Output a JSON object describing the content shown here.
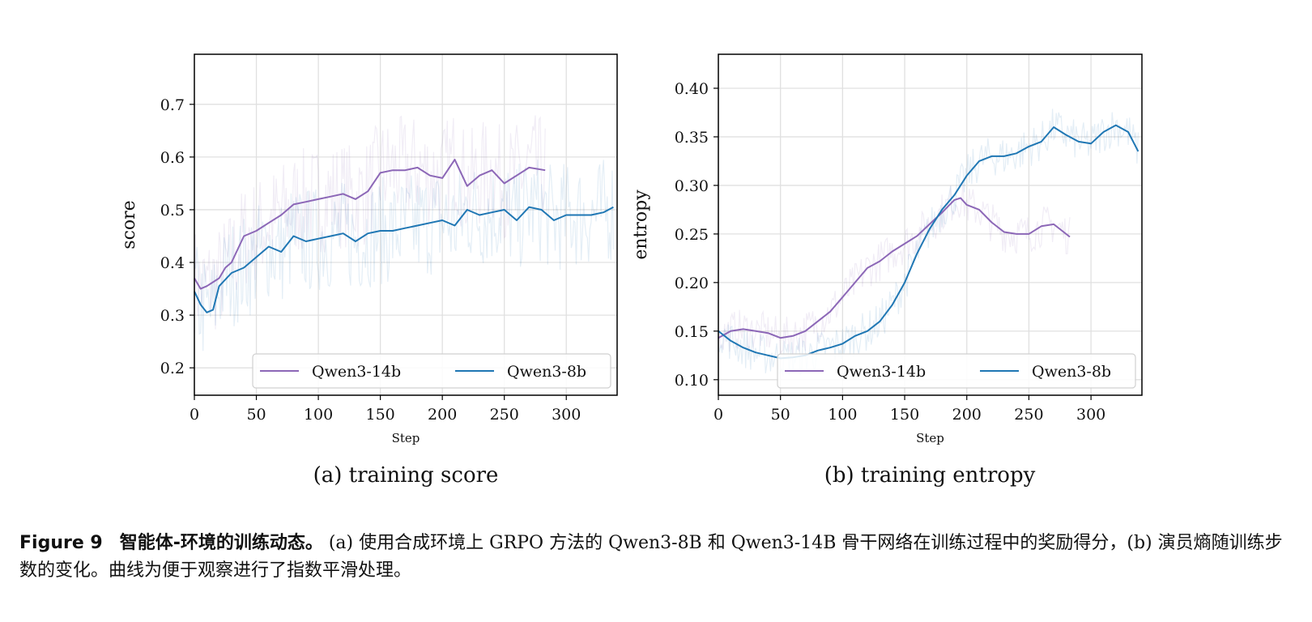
{
  "chart_data": [
    {
      "type": "line",
      "subcaption": "(a) training score",
      "xlabel": "Step",
      "ylabel": "score",
      "xlim": [
        0,
        341
      ],
      "ylim": [
        0.148,
        0.795
      ],
      "xticks": [
        0,
        50,
        100,
        150,
        200,
        250,
        300
      ],
      "yticks": [
        0.2,
        0.3,
        0.4,
        0.5,
        0.6,
        0.7
      ],
      "ytick_labels": [
        "0.2",
        "0.3",
        "0.4",
        "0.5",
        "0.6",
        "0.7"
      ],
      "grid": true,
      "legend_placement": "lower-right",
      "series": [
        {
          "name": "Qwen3-14b",
          "color": "#8c67b7",
          "x": [
            0,
            5,
            10,
            20,
            25,
            30,
            40,
            50,
            60,
            70,
            80,
            90,
            100,
            110,
            120,
            130,
            140,
            150,
            160,
            170,
            180,
            190,
            200,
            210,
            220,
            230,
            240,
            250,
            260,
            270,
            283
          ],
          "y": [
            0.37,
            0.35,
            0.355,
            0.37,
            0.39,
            0.4,
            0.45,
            0.46,
            0.475,
            0.49,
            0.51,
            0.515,
            0.52,
            0.525,
            0.53,
            0.52,
            0.535,
            0.57,
            0.575,
            0.575,
            0.58,
            0.565,
            0.56,
            0.595,
            0.545,
            0.565,
            0.575,
            0.55,
            0.565,
            0.58,
            0.575
          ]
        },
        {
          "name": "Qwen3-8b",
          "color": "#1f77b4",
          "x": [
            0,
            5,
            10,
            15,
            20,
            30,
            40,
            50,
            60,
            70,
            80,
            90,
            100,
            110,
            120,
            130,
            140,
            150,
            160,
            170,
            180,
            190,
            200,
            210,
            220,
            230,
            240,
            250,
            260,
            270,
            280,
            290,
            300,
            310,
            320,
            330,
            338
          ],
          "y": [
            0.345,
            0.32,
            0.305,
            0.31,
            0.355,
            0.38,
            0.39,
            0.41,
            0.43,
            0.42,
            0.45,
            0.44,
            0.445,
            0.45,
            0.455,
            0.44,
            0.455,
            0.46,
            0.46,
            0.465,
            0.47,
            0.475,
            0.48,
            0.47,
            0.5,
            0.49,
            0.495,
            0.5,
            0.48,
            0.505,
            0.5,
            0.48,
            0.49,
            0.49,
            0.49,
            0.495,
            0.505
          ]
        }
      ]
    },
    {
      "type": "line",
      "subcaption": "(b) training entropy",
      "xlabel": "Step",
      "ylabel": "entropy",
      "xlim": [
        0,
        341
      ],
      "ylim": [
        0.084,
        0.435
      ],
      "xticks": [
        0,
        50,
        100,
        150,
        200,
        250,
        300
      ],
      "yticks": [
        0.1,
        0.15,
        0.2,
        0.25,
        0.3,
        0.35,
        0.4
      ],
      "ytick_labels": [
        "0.10",
        "0.15",
        "0.20",
        "0.25",
        "0.30",
        "0.35",
        "0.40"
      ],
      "grid": true,
      "legend_placement": "lower-right",
      "series": [
        {
          "name": "Qwen3-14b",
          "color": "#8c67b7",
          "x": [
            0,
            10,
            20,
            30,
            40,
            50,
            60,
            70,
            80,
            90,
            100,
            110,
            120,
            130,
            140,
            150,
            160,
            170,
            180,
            190,
            195,
            200,
            210,
            220,
            230,
            240,
            250,
            260,
            270,
            283
          ],
          "y": [
            0.143,
            0.15,
            0.152,
            0.15,
            0.148,
            0.143,
            0.145,
            0.15,
            0.16,
            0.17,
            0.185,
            0.2,
            0.215,
            0.222,
            0.232,
            0.24,
            0.248,
            0.26,
            0.272,
            0.285,
            0.287,
            0.28,
            0.275,
            0.262,
            0.252,
            0.25,
            0.25,
            0.258,
            0.26,
            0.247
          ]
        },
        {
          "name": "Qwen3-8b",
          "color": "#1f77b4",
          "x": [
            0,
            10,
            20,
            30,
            40,
            50,
            60,
            70,
            80,
            90,
            100,
            110,
            120,
            130,
            140,
            150,
            160,
            170,
            180,
            190,
            200,
            210,
            220,
            230,
            240,
            250,
            260,
            270,
            280,
            290,
            300,
            310,
            320,
            330,
            338
          ],
          "y": [
            0.15,
            0.14,
            0.133,
            0.128,
            0.125,
            0.122,
            0.123,
            0.125,
            0.13,
            0.133,
            0.137,
            0.145,
            0.15,
            0.16,
            0.177,
            0.2,
            0.23,
            0.255,
            0.275,
            0.29,
            0.31,
            0.325,
            0.33,
            0.33,
            0.333,
            0.34,
            0.345,
            0.36,
            0.352,
            0.345,
            0.343,
            0.355,
            0.362,
            0.355,
            0.335
          ]
        }
      ]
    }
  ],
  "caption": {
    "label": "Figure 9",
    "title": "智能体-环境的训练动态。",
    "text": "(a) 使用合成环境上 GRPO 方法的 Qwen3-8B 和 Qwen3-14B 骨干网络在训练过程中的奖励得分，(b) 演员熵随训练步数的变化。曲线为便于观察进行了指数平滑处理。"
  }
}
